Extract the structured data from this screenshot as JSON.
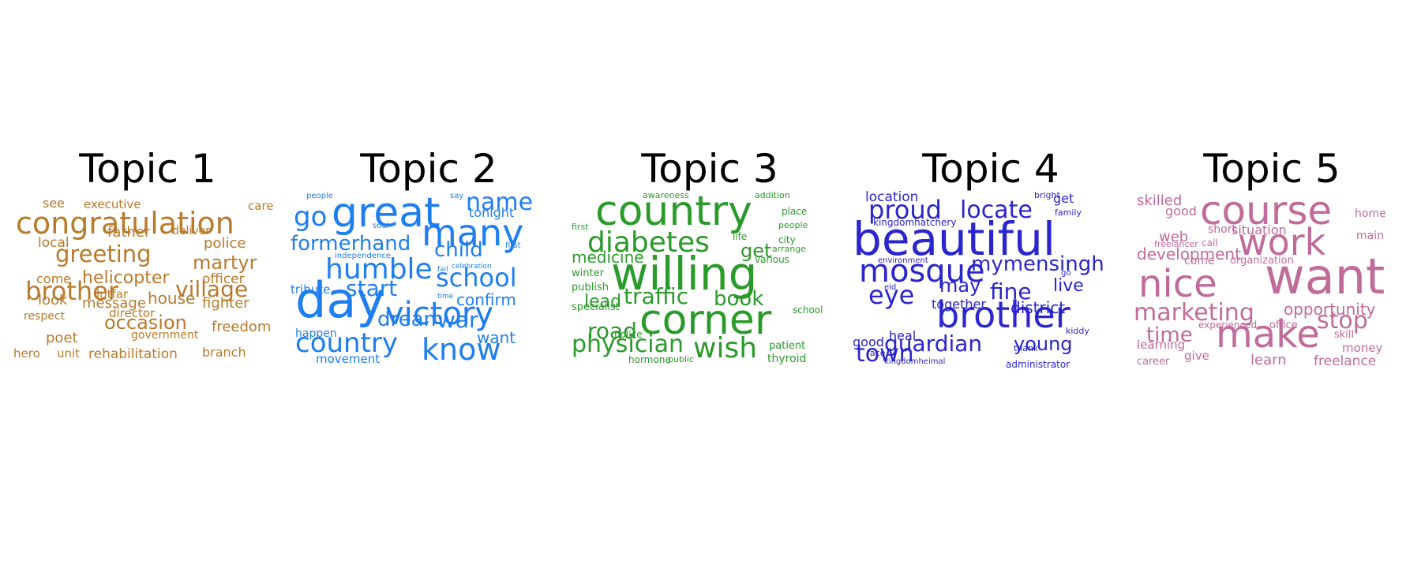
{
  "chart_data": {
    "type": "wordcloud",
    "topics": [
      {
        "title": "Topic 1",
        "color": "#b87a2b",
        "words": [
          "congratulation",
          "greeting",
          "brother",
          "village",
          "helicopter",
          "martyr",
          "occasion",
          "father",
          "police",
          "officer",
          "house",
          "fighter",
          "message",
          "lutfar",
          "freedom",
          "local",
          "executive",
          "deliver",
          "see",
          "care",
          "come",
          "look",
          "respect",
          "director",
          "government",
          "poet",
          "hero",
          "unit",
          "rehabilitation",
          "branch"
        ]
      },
      {
        "title": "Topic 2",
        "color": "#1e7ef0",
        "words": [
          "great",
          "day",
          "many",
          "victory",
          "humble",
          "country",
          "know",
          "formerhand",
          "school",
          "name",
          "go",
          "child",
          "start",
          "dream",
          "war",
          "confirm",
          "tonight",
          "want",
          "tribute",
          "happen",
          "movement",
          "people",
          "say",
          "soul",
          "first",
          "independence",
          "celebration",
          "fail",
          "time"
        ]
      },
      {
        "title": "Topic 3",
        "color": "#2a9a2a",
        "words": [
          "country",
          "willing",
          "corner",
          "diabetes",
          "traffic",
          "physician",
          "wish",
          "book",
          "road",
          "get",
          "medicine",
          "lead",
          "awareness",
          "addition",
          "place",
          "people",
          "first",
          "life",
          "city",
          "arrange",
          "various",
          "winter",
          "publish",
          "specialist",
          "police",
          "school",
          "patient",
          "thyroid",
          "hormone",
          "public"
        ]
      },
      {
        "title": "Topic 4",
        "color": "#2a25cc",
        "words": [
          "beautiful",
          "brother",
          "mosque",
          "proud",
          "locate",
          "guardian",
          "town",
          "eye",
          "fine",
          "mymensingh",
          "young",
          "may",
          "live",
          "district",
          "together",
          "location",
          "get",
          "bright",
          "family",
          "kingdomhatchery",
          "environment",
          "eld",
          "go",
          "good",
          "heal",
          "kiddy",
          "face",
          "thank",
          "kingdomheimal",
          "administrator"
        ]
      },
      {
        "title": "Topic 5",
        "color": "#c06b9a",
        "words": [
          "course",
          "want",
          "work",
          "nice",
          "make",
          "marketing",
          "stop",
          "time",
          "opportunity",
          "development",
          "skilled",
          "good",
          "web",
          "short",
          "situation",
          "home",
          "main",
          "freelancer",
          "call",
          "come",
          "organization",
          "experienced",
          "office",
          "skill",
          "learning",
          "money",
          "career",
          "give",
          "learn",
          "freelance"
        ]
      }
    ]
  }
}
